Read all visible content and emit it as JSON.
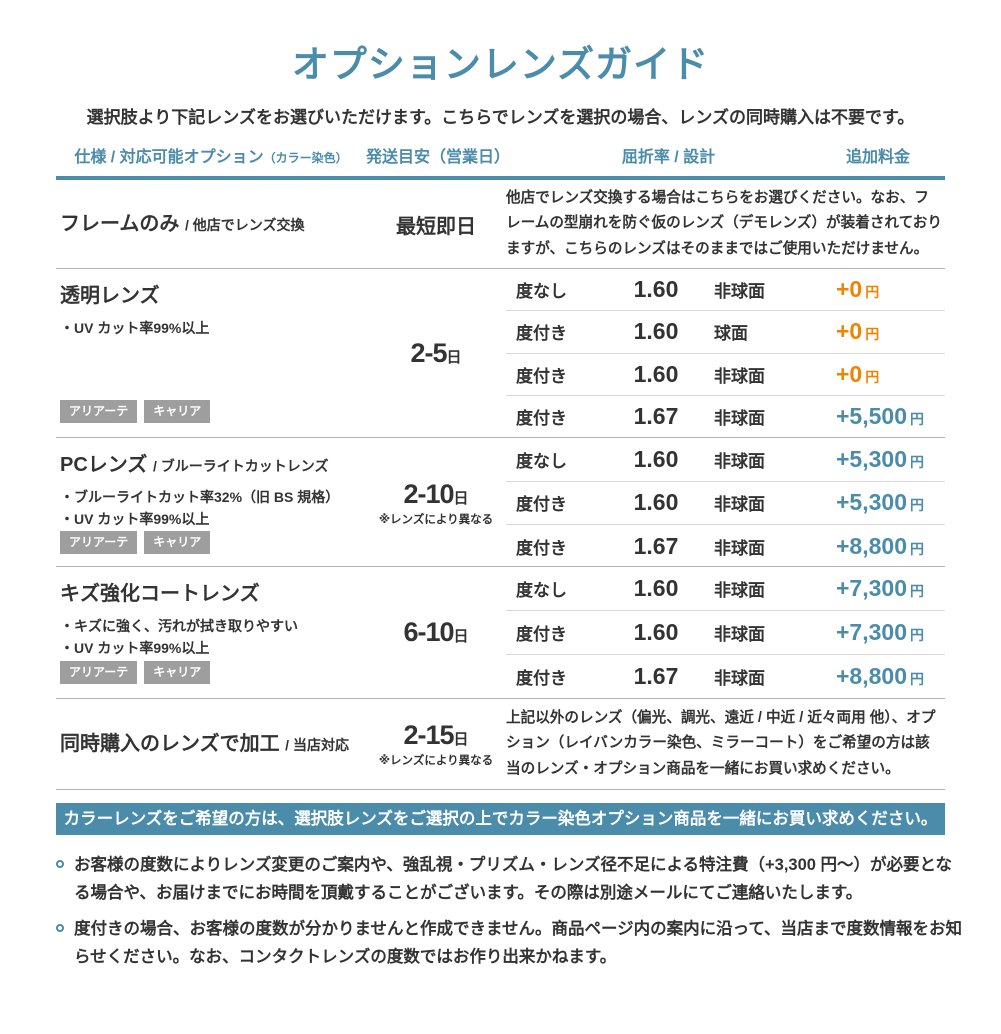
{
  "page": {
    "title": "オプションレンズガイド",
    "subtitle": "選択肢より下記レンズをお選びいただけます。こちらでレンズを選択の場合、レンズの同時購入は不要です。"
  },
  "table": {
    "headers": {
      "spec": "仕様 / 対応可能オプション",
      "spec_small": "（カラー染色）",
      "shipping": "発送目安（営業日）",
      "refraction": "屈折率 / 設計",
      "price": "追加料金"
    },
    "rows": [
      {
        "name": "フレームのみ",
        "name_sub": "/ 他店でレンズ交換",
        "shipping_main": "最短即日",
        "note": "他店でレンズ交換する場合はこちらをお選びください。なお、フレームの型崩れを防ぐ仮のレンズ（デモレンズ）が装着されておりますが、こちらのレンズはそのままではご使用いただけません。"
      },
      {
        "name": "透明レンズ",
        "features": [
          "・UV カット率99%以上"
        ],
        "badges": [
          "アリアーテ",
          "キャリア"
        ],
        "shipping_main": "2-5",
        "shipping_unit": "日",
        "options": [
          {
            "rx": "度なし",
            "index": "1.60",
            "design": "非球面",
            "price": "+0",
            "unit": "円"
          },
          {
            "rx": "度付き",
            "index": "1.60",
            "design": "球面",
            "price": "+0",
            "unit": "円"
          },
          {
            "rx": "度付き",
            "index": "1.60",
            "design": "非球面",
            "price": "+0",
            "unit": "円"
          },
          {
            "rx": "度付き",
            "index": "1.67",
            "design": "非球面",
            "price": "+5,500",
            "unit": "円"
          }
        ]
      },
      {
        "name": "PCレンズ",
        "name_sub": "/ ブルーライトカットレンズ",
        "features": [
          "・ブルーライトカット率32%（旧 BS 規格）",
          "・UV カット率99%以上"
        ],
        "badges": [
          "アリアーテ",
          "キャリア"
        ],
        "shipping_main": "2-10",
        "shipping_unit": "日",
        "shipping_note": "※レンズにより異なる",
        "options": [
          {
            "rx": "度なし",
            "index": "1.60",
            "design": "非球面",
            "price": "+5,300",
            "unit": "円"
          },
          {
            "rx": "度付き",
            "index": "1.60",
            "design": "非球面",
            "price": "+5,300",
            "unit": "円"
          },
          {
            "rx": "度付き",
            "index": "1.67",
            "design": "非球面",
            "price": "+8,800",
            "unit": "円"
          }
        ]
      },
      {
        "name": "キズ強化コートレンズ",
        "features": [
          "・キズに強く、汚れが拭き取りやすい",
          "・UV カット率99%以上"
        ],
        "badges": [
          "アリアーテ",
          "キャリア"
        ],
        "shipping_main": "6-10",
        "shipping_unit": "日",
        "options": [
          {
            "rx": "度なし",
            "index": "1.60",
            "design": "非球面",
            "price": "+7,300",
            "unit": "円"
          },
          {
            "rx": "度付き",
            "index": "1.60",
            "design": "非球面",
            "price": "+7,300",
            "unit": "円"
          },
          {
            "rx": "度付き",
            "index": "1.67",
            "design": "非球面",
            "price": "+8,800",
            "unit": "円"
          }
        ]
      },
      {
        "name": "同時購入のレンズで加工",
        "name_sub": "/ 当店対応",
        "shipping_main": "2-15",
        "shipping_unit": "日",
        "shipping_note": "※レンズにより異なる",
        "note": "上記以外のレンズ（偏光、調光、遠近 / 中近 / 近々両用 他）、オプション（レイバンカラー染色、ミラーコート）をご希望の方は該当のレンズ・オプション商品を一緒にお買い求めください。"
      }
    ]
  },
  "banner": "カラーレンズをご希望の方は、選択肢レンズをご選択の上でカラー染色オプション商品を一緒にお買い求めください。",
  "notes": [
    "お客様の度数によりレンズ変更のご案内や、強乱視・プリズム・レンズ径不足による特注費（+3,300 円〜）が必要となる場合や、お届けまでにお時間を頂戴することがございます。その際は別途メールにてご連絡いたします。",
    "度付きの場合、お客様の度数が分かりませんと作成できません。商品ページ内の案内に沿って、当店まで度数情報をお知らせください。なお、コンタクトレンズの度数ではお作り出来かねます。"
  ],
  "colors": {
    "teal": "#4a8caa",
    "orange": "#f08300",
    "badge_gray": "#9e9e9e",
    "text_dark": "#333333",
    "divider_main": "#b3b3b3",
    "divider_sub": "#d9d9d9"
  }
}
